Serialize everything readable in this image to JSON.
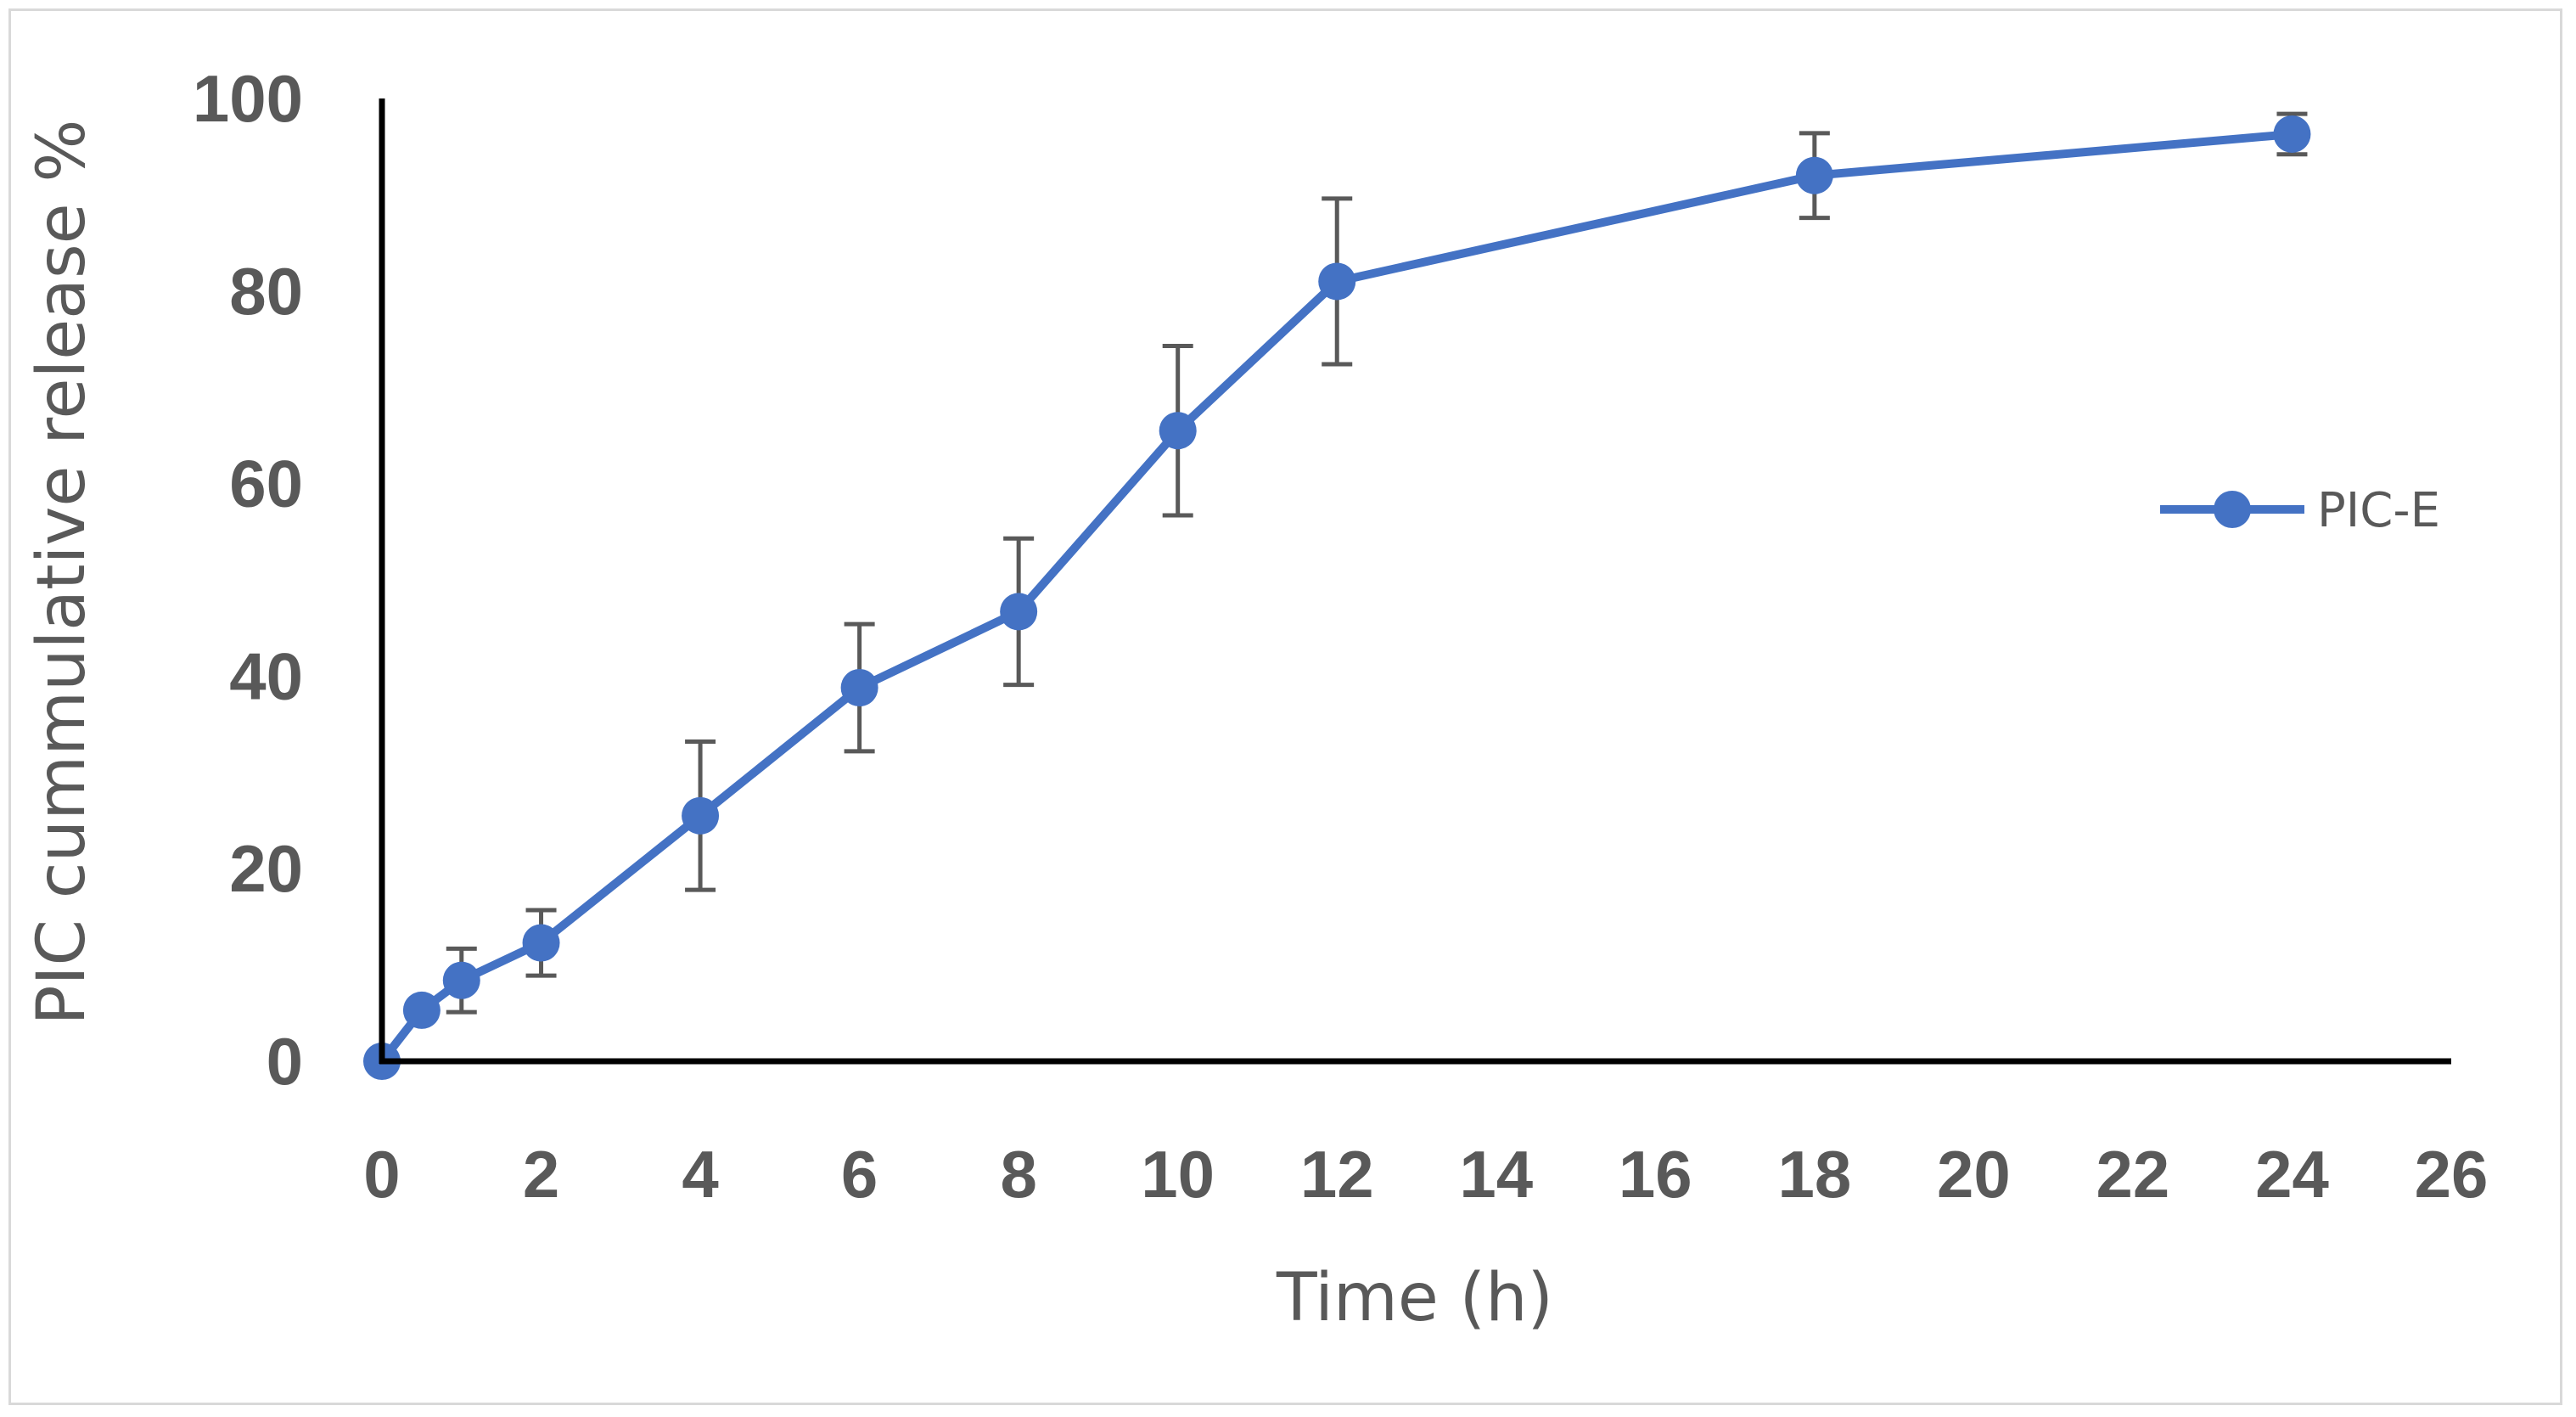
{
  "chart_data": {
    "type": "line",
    "title": "",
    "xlabel": "Time (h)",
    "ylabel": "PIC cummulative release %",
    "xlim": [
      0,
      26
    ],
    "ylim": [
      0,
      100
    ],
    "x_ticks": [
      0,
      2,
      4,
      6,
      8,
      10,
      12,
      14,
      16,
      18,
      20,
      22,
      24,
      26
    ],
    "y_ticks": [
      0,
      20,
      40,
      60,
      80,
      100
    ],
    "grid": false,
    "legend_position": "right",
    "series": [
      {
        "name": "PIC-E",
        "color": "#4472c4",
        "x": [
          0,
          0.5,
          1,
          2,
          4,
          6,
          8,
          10,
          12,
          18,
          24
        ],
        "y": [
          0,
          5.3,
          8.4,
          12.3,
          25.5,
          38.8,
          46.7,
          65.5,
          81.0,
          92.0,
          96.3
        ],
        "error": [
          0,
          0,
          3.3,
          3.4,
          7.7,
          6.6,
          7.6,
          8.8,
          8.6,
          4.4,
          2.1
        ]
      }
    ]
  }
}
